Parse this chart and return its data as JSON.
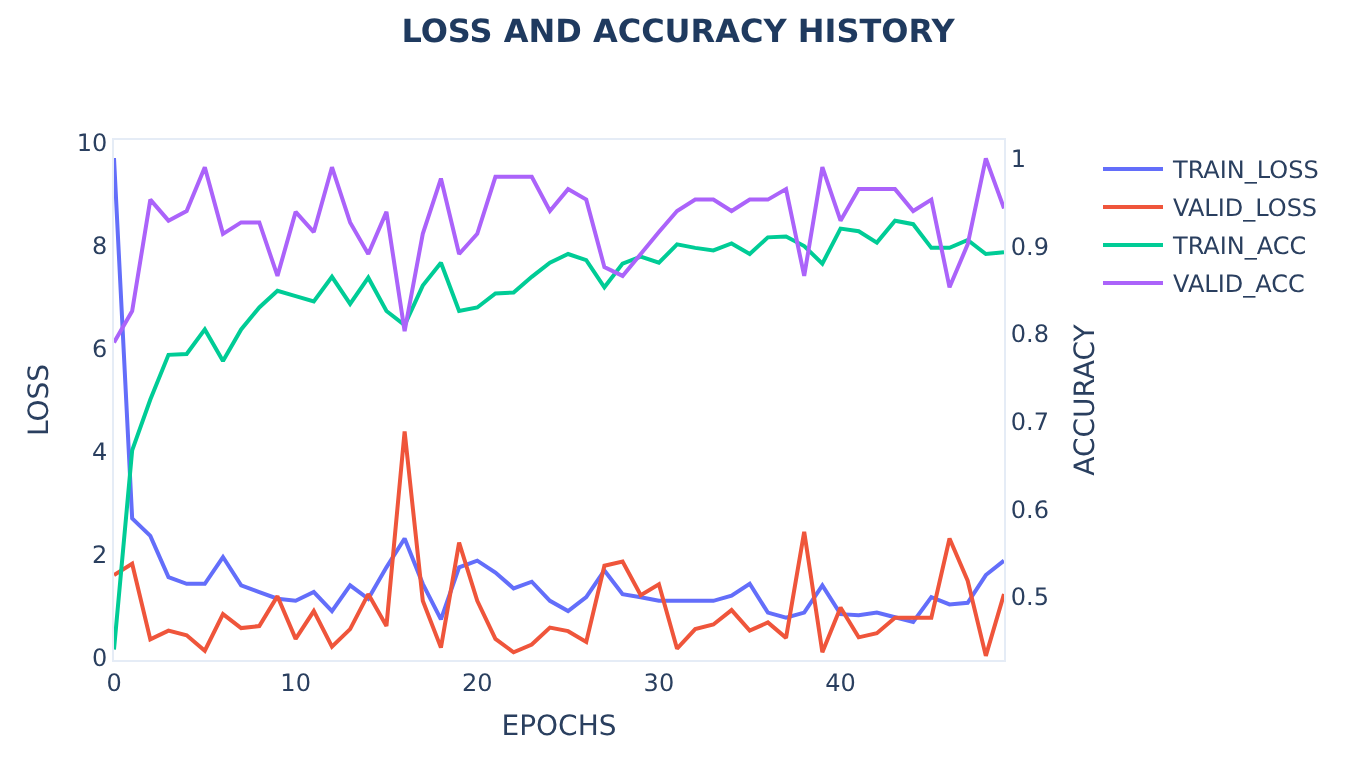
{
  "chart_data": {
    "type": "line",
    "title": "LOSS AND ACCURACY HISTORY",
    "xlabel": "EPOCHS",
    "ylabel": "LOSS",
    "y2label": "ACCURACY",
    "x": [
      0,
      1,
      2,
      3,
      4,
      5,
      6,
      7,
      8,
      9,
      10,
      11,
      12,
      13,
      14,
      15,
      16,
      17,
      18,
      19,
      20,
      21,
      22,
      23,
      24,
      25,
      26,
      27,
      28,
      29,
      30,
      31,
      32,
      33,
      34,
      35,
      36,
      37,
      38,
      39,
      40,
      41,
      42,
      43,
      44,
      45,
      46,
      47,
      48,
      49
    ],
    "series": [
      {
        "name": "TRAIN_LOSS",
        "color": "#636efa",
        "values": [
          9.7,
          2.7,
          2.36,
          1.56,
          1.43,
          1.43,
          1.95,
          1.4,
          1.27,
          1.14,
          1.1,
          1.27,
          0.9,
          1.4,
          1.14,
          1.75,
          2.31,
          1.43,
          0.74,
          1.75,
          1.88,
          1.65,
          1.34,
          1.47,
          1.1,
          0.9,
          1.17,
          1.69,
          1.23,
          1.17,
          1.1,
          1.1,
          1.1,
          1.1,
          1.2,
          1.43,
          0.87,
          0.77,
          0.87,
          1.4,
          0.84,
          0.82,
          0.87,
          0.78,
          0.69,
          1.17,
          1.03,
          1.06,
          1.6,
          1.88
        ]
      },
      {
        "name": "VALID_LOSS",
        "color": "#ef553b",
        "values": [
          1.6,
          1.82,
          0.35,
          0.52,
          0.43,
          0.13,
          0.84,
          0.57,
          0.61,
          1.19,
          0.36,
          0.9,
          0.21,
          0.55,
          1.23,
          0.61,
          4.39,
          1.1,
          0.19,
          2.23,
          1.1,
          0.36,
          0.1,
          0.25,
          0.58,
          0.51,
          0.3,
          1.78,
          1.86,
          1.21,
          1.42,
          0.17,
          0.55,
          0.64,
          0.92,
          0.52,
          0.68,
          0.38,
          2.44,
          0.1,
          0.97,
          0.39,
          0.47,
          0.77,
          0.77,
          0.77,
          2.31,
          1.49,
          0.03,
          1.23
        ]
      },
      {
        "name": "TRAIN_ACC",
        "color": "#00cc96",
        "axis": "y2",
        "values": [
          0.44,
          0.667,
          0.725,
          0.776,
          0.777,
          0.805,
          0.769,
          0.805,
          0.83,
          0.849,
          0.843,
          0.837,
          0.865,
          0.834,
          0.864,
          0.826,
          0.81,
          0.855,
          0.881,
          0.826,
          0.83,
          0.846,
          0.847,
          0.865,
          0.881,
          0.891,
          0.884,
          0.853,
          0.88,
          0.888,
          0.881,
          0.902,
          0.898,
          0.895,
          0.903,
          0.891,
          0.91,
          0.911,
          0.9,
          0.88,
          0.92,
          0.917,
          0.904,
          0.929,
          0.925,
          0.898,
          0.898,
          0.907,
          0.891,
          0.893
        ]
      },
      {
        "name": "VALID_ACC",
        "color": "#ab63fa",
        "axis": "y2",
        "values": [
          0.79,
          0.826,
          0.953,
          0.929,
          0.94,
          0.99,
          0.914,
          0.927,
          0.927,
          0.866,
          0.939,
          0.916,
          0.99,
          0.927,
          0.891,
          0.939,
          0.803,
          0.914,
          0.977,
          0.891,
          0.914,
          0.979,
          0.979,
          0.979,
          0.94,
          0.965,
          0.953,
          0.876,
          0.866,
          0.891,
          0.916,
          0.94,
          0.953,
          0.953,
          0.94,
          0.953,
          0.953,
          0.965,
          0.866,
          0.99,
          0.929,
          0.965,
          0.965,
          0.965,
          0.94,
          0.953,
          0.853,
          0.902,
          1.0,
          0.943
        ]
      }
    ],
    "xlim": [
      0,
      49
    ],
    "xticks": [
      0,
      10,
      20,
      30,
      40
    ],
    "ylim": [
      -0.05,
      10.05
    ],
    "yticks": [
      0,
      2,
      4,
      6,
      8,
      10
    ],
    "y2lim": [
      0.428,
      1.021
    ],
    "y2ticks": [
      0.5,
      0.6,
      0.7,
      0.8,
      0.9,
      1
    ],
    "grid": false,
    "legend": "top right",
    "marker": "none",
    "line_style": "solid"
  }
}
